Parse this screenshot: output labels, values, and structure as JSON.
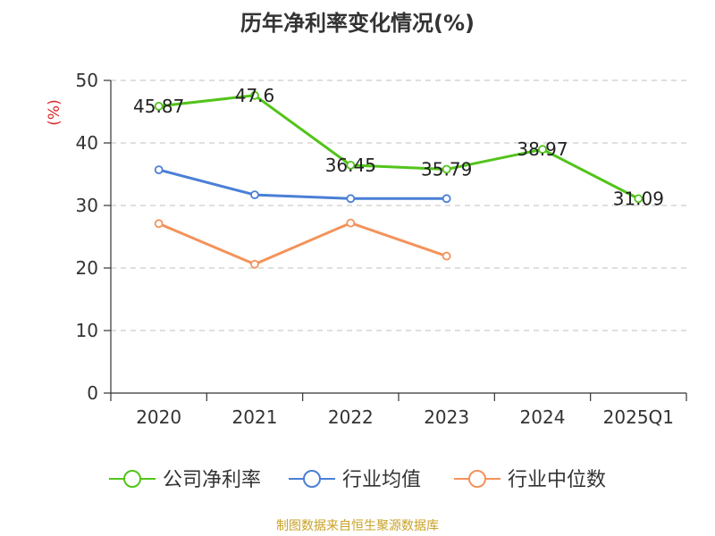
{
  "chart_data": {
    "type": "line",
    "title": "历年净利率变化情况(%)",
    "ylabel": "(%)",
    "categories": [
      "2020",
      "2021",
      "2022",
      "2023",
      "2024",
      "2025Q1"
    ],
    "ylim": [
      0,
      50
    ],
    "yticks": [
      0,
      10,
      20,
      30,
      40,
      50
    ],
    "grid": true,
    "legend_position": "bottom",
    "series": [
      {
        "name": "公司净利率",
        "color": "#52c41a",
        "values": [
          45.87,
          47.6,
          36.45,
          35.79,
          38.97,
          31.09
        ],
        "labels": [
          "45.87",
          "47.6",
          "36.45",
          "35.79",
          "38.97",
          "31.09"
        ]
      },
      {
        "name": "行业均值",
        "color": "#4a7fd6",
        "values": [
          35.7,
          31.7,
          31.1,
          31.1,
          null,
          null
        ]
      },
      {
        "name": "行业中位数",
        "color": "#f4935a",
        "values": [
          27.1,
          20.6,
          27.2,
          21.9,
          null,
          null
        ]
      }
    ]
  },
  "source": "制图数据来自恒生聚源数据库"
}
